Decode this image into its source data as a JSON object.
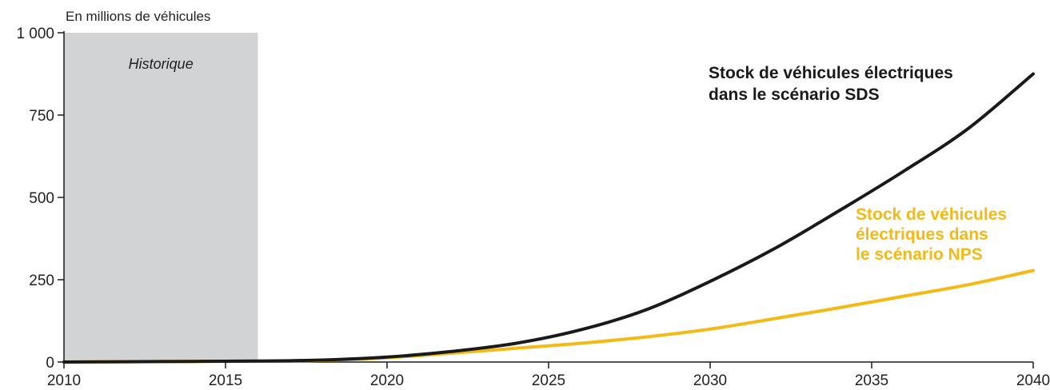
{
  "chart_data": {
    "type": "line",
    "ylabel": "En millions de véhicules",
    "x_ticks": [
      "2010",
      "2015",
      "2020",
      "2025",
      "2030",
      "2035",
      "2040"
    ],
    "y_ticks": [
      "0",
      "250",
      "500",
      "750",
      "1 000"
    ],
    "xlim": [
      2010,
      2040
    ],
    "ylim": [
      0,
      1000
    ],
    "grid": false,
    "shaded_region": {
      "label": "Historique",
      "x_start": 2010,
      "x_end": 2016,
      "color": "#d2d3d5"
    },
    "series": [
      {
        "name": "Stock de véhicules électriques dans le scénario SDS",
        "label_lines": [
          "Stock de véhicules électriques",
          "dans le scénario SDS"
        ],
        "color": "#1a1a1a",
        "x": [
          2010,
          2012,
          2014,
          2016,
          2018,
          2020,
          2022,
          2024,
          2026,
          2028,
          2030,
          2032,
          2034,
          2036,
          2038,
          2040
        ],
        "values": [
          0,
          1,
          2,
          3,
          6,
          15,
          32,
          57,
          98,
          158,
          245,
          345,
          460,
          580,
          710,
          875
        ]
      },
      {
        "name": "Stock de véhicules électriques dans le scénario NPS",
        "label_lines": [
          "Stock de véhicules",
          "électriques dans",
          "le scénario NPS"
        ],
        "color": "#f5b915",
        "x": [
          2010,
          2012,
          2014,
          2016,
          2018,
          2020,
          2022,
          2024,
          2026,
          2028,
          2030,
          2032,
          2034,
          2036,
          2038,
          2040
        ],
        "values": [
          0,
          1,
          2,
          3,
          5,
          13,
          27,
          42,
          57,
          76,
          100,
          132,
          165,
          200,
          235,
          278
        ]
      }
    ]
  }
}
